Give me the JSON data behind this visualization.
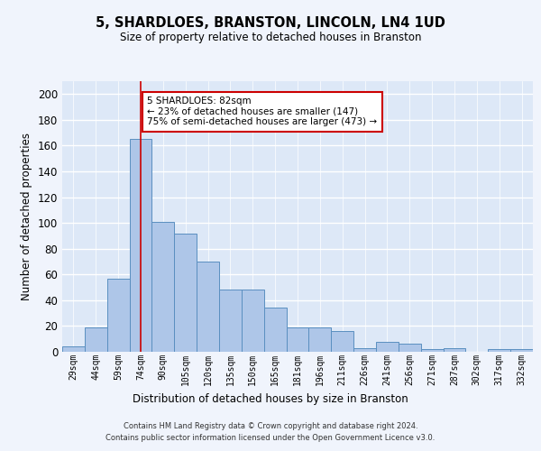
{
  "title": "5, SHARDLOES, BRANSTON, LINCOLN, LN4 1UD",
  "subtitle": "Size of property relative to detached houses in Branston",
  "xlabel": "Distribution of detached houses by size in Branston",
  "ylabel": "Number of detached properties",
  "categories": [
    "29sqm",
    "44sqm",
    "59sqm",
    "74sqm",
    "90sqm",
    "105sqm",
    "120sqm",
    "135sqm",
    "150sqm",
    "165sqm",
    "181sqm",
    "196sqm",
    "211sqm",
    "226sqm",
    "241sqm",
    "256sqm",
    "271sqm",
    "287sqm",
    "302sqm",
    "317sqm",
    "332sqm"
  ],
  "values": [
    4,
    19,
    57,
    165,
    101,
    92,
    70,
    48,
    48,
    34,
    19,
    19,
    16,
    3,
    8,
    6,
    2,
    3,
    0,
    2,
    2
  ],
  "bar_color": "#aec6e8",
  "bar_edge_color": "#5a8fc0",
  "background_color": "#dde8f7",
  "grid_color": "#ffffff",
  "red_line_x": 3,
  "annotation_text": "5 SHARDLOES: 82sqm\n← 23% of detached houses are smaller (147)\n75% of semi-detached houses are larger (473) →",
  "annotation_box_color": "#ffffff",
  "annotation_box_edge": "#cc0000",
  "footer_line1": "Contains HM Land Registry data © Crown copyright and database right 2024.",
  "footer_line2": "Contains public sector information licensed under the Open Government Licence v3.0.",
  "ylim": [
    0,
    210
  ],
  "yticks": [
    0,
    20,
    40,
    60,
    80,
    100,
    120,
    140,
    160,
    180,
    200
  ],
  "fig_bg": "#f0f4fc"
}
